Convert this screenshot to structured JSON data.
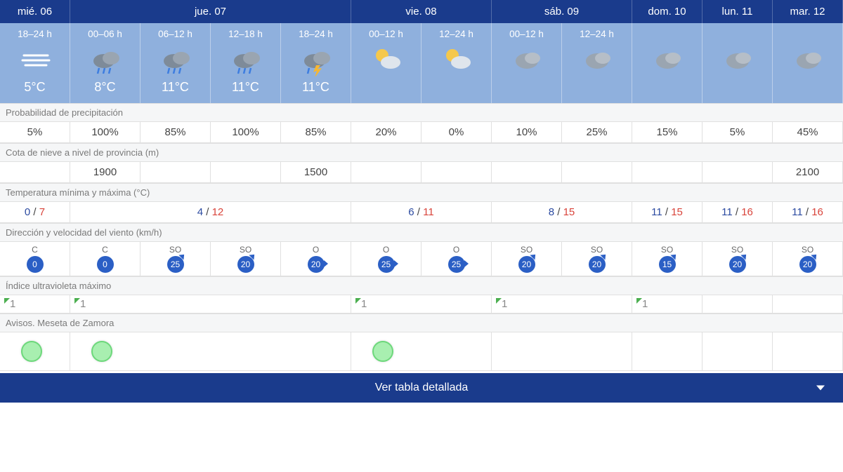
{
  "days": [
    {
      "label": "mié. 06",
      "span": 1
    },
    {
      "label": "jue. 07",
      "span": 4
    },
    {
      "label": "vie. 08",
      "span": 2
    },
    {
      "label": "sáb. 09",
      "span": 2
    },
    {
      "label": "dom. 10",
      "span": 1
    },
    {
      "label": "lun. 11",
      "span": 1
    },
    {
      "label": "mar. 12",
      "span": 1
    }
  ],
  "periods": [
    {
      "range": "18–24 h",
      "icon": "fog",
      "temp": "5°C"
    },
    {
      "range": "00–06 h",
      "icon": "rain",
      "temp": "8°C"
    },
    {
      "range": "06–12 h",
      "icon": "rain",
      "temp": "11°C"
    },
    {
      "range": "12–18 h",
      "icon": "rain",
      "temp": "11°C"
    },
    {
      "range": "18–24 h",
      "icon": "storm",
      "temp": "11°C"
    },
    {
      "range": "00–12 h",
      "icon": "suncloud",
      "temp": ""
    },
    {
      "range": "12–24 h",
      "icon": "suncloud",
      "temp": ""
    },
    {
      "range": "00–12 h",
      "icon": "cloud",
      "temp": ""
    },
    {
      "range": "12–24 h",
      "icon": "cloud",
      "temp": ""
    },
    {
      "range": "",
      "icon": "cloud",
      "temp": ""
    },
    {
      "range": "",
      "icon": "cloud",
      "temp": ""
    },
    {
      "range": "",
      "icon": "cloud",
      "temp": ""
    }
  ],
  "sections": {
    "precip": {
      "label": "Probabilidad de precipitación",
      "values": [
        "5%",
        "100%",
        "85%",
        "100%",
        "85%",
        "20%",
        "0%",
        "10%",
        "25%",
        "15%",
        "5%",
        "45%"
      ]
    },
    "snow": {
      "label": "Cota de nieve a nivel de provincia (m)",
      "values": [
        "",
        "1900",
        "",
        "",
        "1500",
        "",
        "",
        "",
        "",
        "",
        "",
        "2100"
      ]
    },
    "temps": {
      "label": "Temperatura mínima y máxima (°C)",
      "cells": [
        {
          "min": "0",
          "max": "7",
          "span": 1
        },
        {
          "min": "4",
          "max": "12",
          "span": 4
        },
        {
          "min": "6",
          "max": "11",
          "span": 2
        },
        {
          "min": "8",
          "max": "15",
          "span": 2
        },
        {
          "min": "11",
          "max": "15",
          "span": 1
        },
        {
          "min": "11",
          "max": "16",
          "span": 1
        },
        {
          "min": "11",
          "max": "16",
          "span": 1
        }
      ]
    },
    "wind": {
      "label": "Dirección y velocidad del viento (km/h)",
      "values": [
        {
          "dir": "C",
          "speed": "0",
          "arrow": ""
        },
        {
          "dir": "C",
          "speed": "0",
          "arrow": ""
        },
        {
          "dir": "SO",
          "speed": "25",
          "arrow": "ne"
        },
        {
          "dir": "SO",
          "speed": "20",
          "arrow": "ne"
        },
        {
          "dir": "O",
          "speed": "20",
          "arrow": "e"
        },
        {
          "dir": "O",
          "speed": "25",
          "arrow": "e"
        },
        {
          "dir": "O",
          "speed": "25",
          "arrow": "e"
        },
        {
          "dir": "SO",
          "speed": "20",
          "arrow": "ne"
        },
        {
          "dir": "SO",
          "speed": "20",
          "arrow": "ne"
        },
        {
          "dir": "SO",
          "speed": "15",
          "arrow": "ne"
        },
        {
          "dir": "SO",
          "speed": "20",
          "arrow": "ne"
        },
        {
          "dir": "SO",
          "speed": "20",
          "arrow": "ne"
        }
      ]
    },
    "uv": {
      "label": "Índice ultravioleta máximo",
      "cells": [
        {
          "val": "1",
          "span": 1
        },
        {
          "val": "1",
          "span": 4
        },
        {
          "val": "1",
          "span": 2
        },
        {
          "val": "1",
          "span": 2
        },
        {
          "val": "1",
          "span": 1
        },
        {
          "val": "",
          "span": 1
        },
        {
          "val": "",
          "span": 1
        }
      ]
    },
    "avisos": {
      "label": "Avisos. Meseta de Zamora",
      "cells": [
        {
          "show": true,
          "span": 1
        },
        {
          "show": true,
          "span": 4
        },
        {
          "show": true,
          "span": 2
        },
        {
          "show": false,
          "span": 2
        },
        {
          "show": false,
          "span": 1
        },
        {
          "show": false,
          "span": 1
        },
        {
          "show": false,
          "span": 1
        }
      ]
    }
  },
  "footer": {
    "label": "Ver tabla detallada"
  },
  "colors": {
    "header_bg": "#1a3b8c",
    "period_bg": "#8fb0dd",
    "temp_max": "#d9443b",
    "temp_min": "#2b4aa0",
    "wind_badge": "#2b5fc5",
    "aviso_green": "#a8efb0"
  }
}
